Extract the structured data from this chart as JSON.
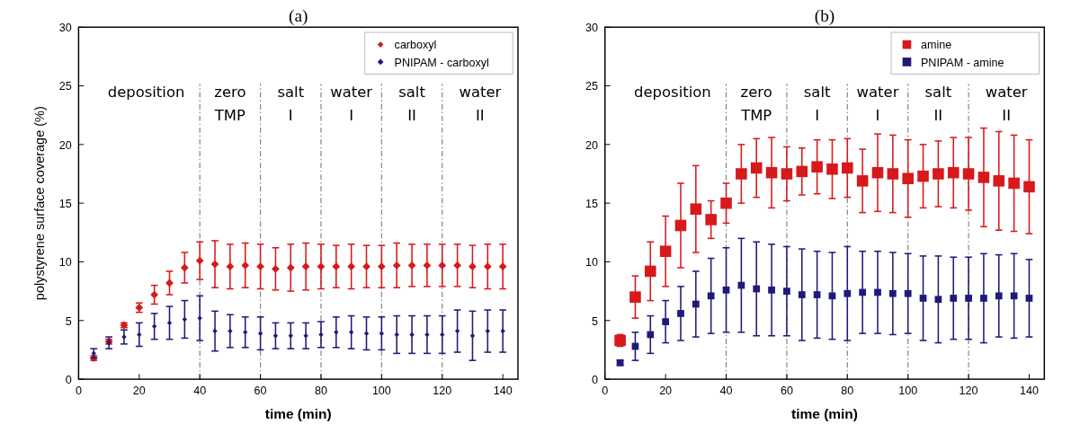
{
  "chart_data": [
    {
      "type": "scatter",
      "title": "(a)",
      "xlabel": "time (min)",
      "ylabel": "polystyrene surface coverage (%)",
      "marker": "diamond",
      "legend": "top right",
      "grid": false,
      "x": [
        5,
        10,
        15,
        20,
        25,
        30,
        35,
        40,
        45,
        50,
        55,
        60,
        65,
        70,
        75,
        80,
        85,
        90,
        95,
        100,
        105,
        110,
        115,
        120,
        125,
        130,
        135,
        140
      ],
      "xlim": [
        0,
        145
      ],
      "xticks": [
        0,
        20,
        40,
        60,
        80,
        100,
        120,
        140
      ],
      "ylim": [
        0,
        30
      ],
      "yticks": [
        0,
        5,
        10,
        15,
        20,
        25,
        30
      ],
      "series": [
        {
          "name": "carboxyl",
          "color": "#d7191c",
          "values": [
            1.8,
            3.2,
            4.6,
            6.1,
            7.2,
            8.2,
            9.5,
            10.1,
            9.8,
            9.6,
            9.7,
            9.6,
            9.4,
            9.5,
            9.6,
            9.6,
            9.6,
            9.6,
            9.6,
            9.6,
            9.7,
            9.7,
            9.7,
            9.7,
            9.7,
            9.6,
            9.6,
            9.6
          ],
          "errors": [
            0.2,
            0.2,
            0.2,
            0.4,
            0.8,
            1.0,
            1.3,
            1.6,
            2.0,
            1.9,
            1.9,
            1.9,
            1.8,
            2.0,
            2.0,
            1.9,
            1.8,
            1.9,
            1.8,
            1.8,
            1.9,
            1.8,
            1.8,
            1.8,
            1.8,
            1.8,
            1.9,
            1.9
          ]
        },
        {
          "name": "PNIPAM - carboxyl",
          "color": "#1f1a7a",
          "values": [
            2.2,
            3.1,
            3.6,
            3.8,
            4.5,
            4.8,
            5.1,
            5.2,
            4.1,
            4.1,
            4.0,
            3.9,
            3.7,
            3.7,
            3.7,
            3.8,
            4.0,
            4.0,
            3.9,
            3.9,
            3.8,
            3.8,
            3.8,
            3.8,
            4.1,
            3.7,
            4.1,
            4.1
          ],
          "errors": [
            0.4,
            0.5,
            0.6,
            1.0,
            1.1,
            1.4,
            1.6,
            1.9,
            1.7,
            1.4,
            1.3,
            1.4,
            1.1,
            1.1,
            1.1,
            1.1,
            1.3,
            1.4,
            1.4,
            1.4,
            1.6,
            1.6,
            1.6,
            1.6,
            1.8,
            2.1,
            1.8,
            1.8
          ]
        }
      ],
      "ref_lines": [
        {
          "axis": "x",
          "value": 40,
          "color": "#808080",
          "line_style": "dashdot"
        },
        {
          "axis": "x",
          "value": 60,
          "color": "#808080",
          "line_style": "dashdot"
        },
        {
          "axis": "x",
          "value": 80,
          "color": "#808080",
          "line_style": "dashdot"
        },
        {
          "axis": "x",
          "value": 100,
          "color": "#808080",
          "line_style": "dashdot"
        },
        {
          "axis": "x",
          "value": 120,
          "color": "#808080",
          "line_style": "dashdot"
        }
      ],
      "annotations": [
        "deposition",
        "zero\nTMP",
        "salt\nI",
        "water\nI",
        "salt\nII",
        "water\nII"
      ]
    },
    {
      "type": "scatter",
      "title": "(b)",
      "xlabel": "time (min)",
      "marker": "square",
      "legend": "top right",
      "grid": false,
      "x": [
        5,
        10,
        15,
        20,
        25,
        30,
        35,
        40,
        45,
        50,
        55,
        60,
        65,
        70,
        75,
        80,
        85,
        90,
        95,
        100,
        105,
        110,
        115,
        120,
        125,
        130,
        135,
        140
      ],
      "xlim": [
        0,
        145
      ],
      "xticks": [
        0,
        20,
        40,
        60,
        80,
        100,
        120,
        140
      ],
      "ylim": [
        0,
        30
      ],
      "yticks": [
        0,
        5,
        10,
        15,
        20,
        25,
        30
      ],
      "series": [
        {
          "name": "amine",
          "color": "#d7191c",
          "values": [
            3.3,
            7.0,
            9.2,
            10.9,
            13.1,
            14.5,
            13.6,
            15.0,
            17.5,
            18.0,
            17.6,
            17.5,
            17.7,
            18.1,
            17.9,
            18.0,
            16.9,
            17.6,
            17.5,
            17.1,
            17.3,
            17.5,
            17.6,
            17.5,
            17.2,
            16.9,
            16.7,
            16.4
          ],
          "errors": [
            0.5,
            1.8,
            2.5,
            3.0,
            3.6,
            3.7,
            1.6,
            1.7,
            2.5,
            2.5,
            3.0,
            2.3,
            2.0,
            2.3,
            2.5,
            2.5,
            2.7,
            3.3,
            3.3,
            3.3,
            2.7,
            2.8,
            3.0,
            3.1,
            4.2,
            4.2,
            4.1,
            4.0
          ]
        },
        {
          "name": "PNIPAM - amine",
          "color": "#1f1a7a",
          "values": [
            1.4,
            2.8,
            3.8,
            4.9,
            5.6,
            6.4,
            7.1,
            7.6,
            8.0,
            7.7,
            7.6,
            7.5,
            7.2,
            7.2,
            7.1,
            7.3,
            7.4,
            7.4,
            7.3,
            7.3,
            6.9,
            6.8,
            6.9,
            6.9,
            6.9,
            7.1,
            7.1,
            6.9
          ],
          "errors": [
            0.2,
            1.2,
            1.6,
            1.8,
            2.3,
            2.8,
            3.2,
            3.6,
            4.0,
            4.0,
            3.9,
            3.8,
            3.9,
            3.7,
            3.7,
            4.0,
            3.5,
            3.5,
            3.5,
            3.4,
            3.6,
            3.7,
            3.5,
            3.5,
            3.8,
            3.5,
            3.6,
            3.3
          ]
        }
      ],
      "ref_lines": [
        {
          "axis": "x",
          "value": 40,
          "color": "#808080",
          "line_style": "dashdot"
        },
        {
          "axis": "x",
          "value": 60,
          "color": "#808080",
          "line_style": "dashdot"
        },
        {
          "axis": "x",
          "value": 80,
          "color": "#808080",
          "line_style": "dashdot"
        },
        {
          "axis": "x",
          "value": 100,
          "color": "#808080",
          "line_style": "dashdot"
        },
        {
          "axis": "x",
          "value": 120,
          "color": "#808080",
          "line_style": "dashdot"
        }
      ],
      "annotations": [
        "deposition",
        "zero\nTMP",
        "salt\nI",
        "water\nI",
        "salt\nII",
        "water\nII"
      ]
    }
  ]
}
